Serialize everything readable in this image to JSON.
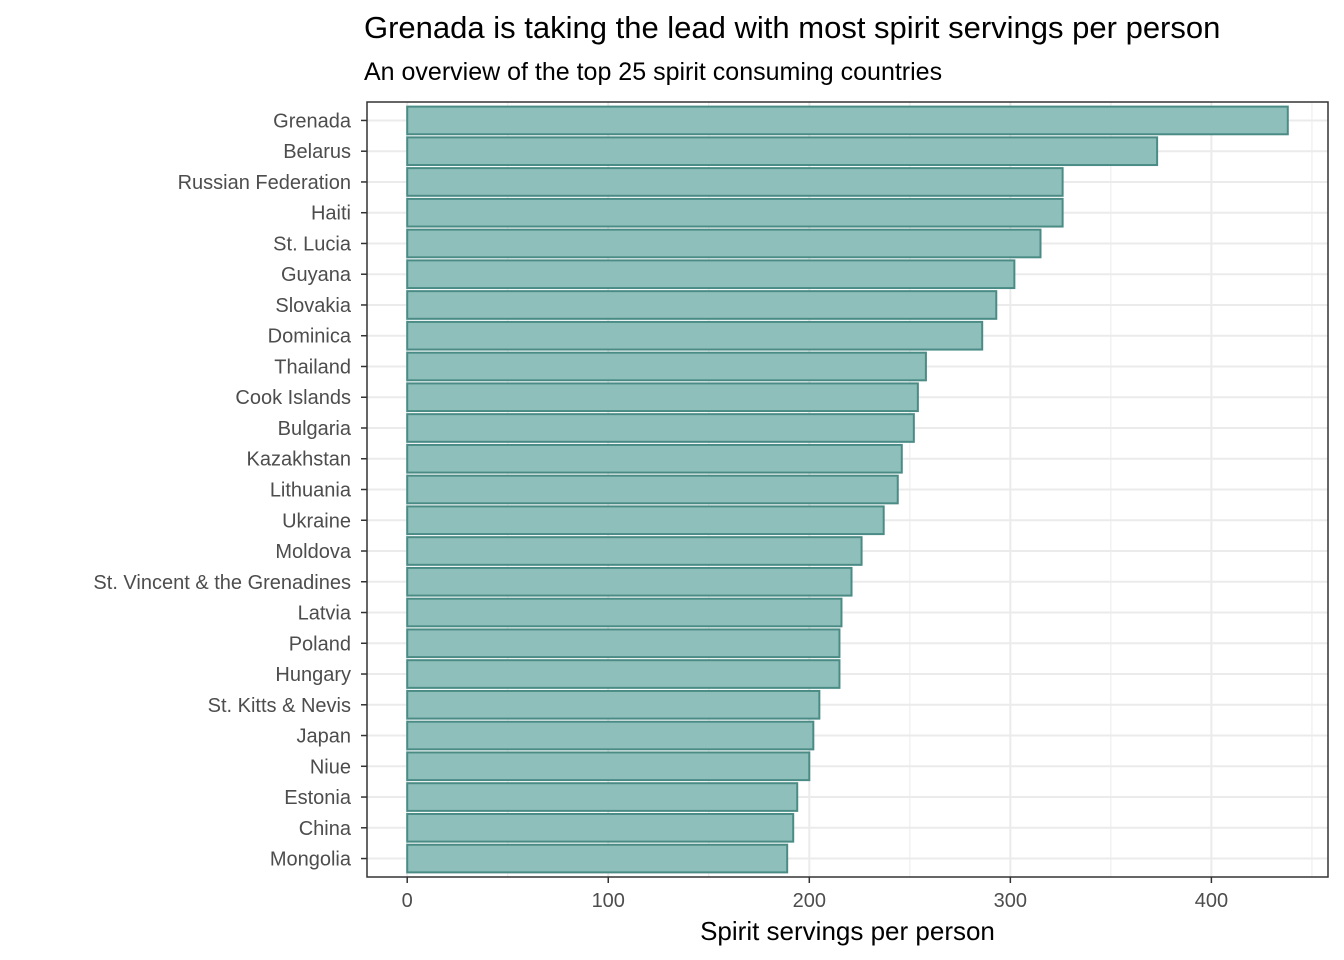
{
  "chart_data": {
    "type": "bar",
    "orientation": "horizontal",
    "title": "Grenada is taking the lead with most spirit servings per person",
    "subtitle": "An overview of the top 25 spirit consuming countries",
    "xlabel": "Spirit servings per person",
    "ylabel": "",
    "xlim": [
      -20,
      458
    ],
    "xticks": [
      0,
      100,
      200,
      300,
      400
    ],
    "grid": true,
    "categories": [
      "Grenada",
      "Belarus",
      "Russian Federation",
      "Haiti",
      "St. Lucia",
      "Guyana",
      "Slovakia",
      "Dominica",
      "Thailand",
      "Cook Islands",
      "Bulgaria",
      "Kazakhstan",
      "Lithuania",
      "Ukraine",
      "Moldova",
      "St. Vincent & the Grenadines",
      "Latvia",
      "Poland",
      "Hungary",
      "St. Kitts & Nevis",
      "Japan",
      "Niue",
      "Estonia",
      "China",
      "Mongolia"
    ],
    "values": [
      438,
      373,
      326,
      326,
      315,
      302,
      293,
      286,
      258,
      254,
      252,
      246,
      244,
      237,
      226,
      221,
      216,
      215,
      215,
      205,
      202,
      200,
      194,
      192,
      189
    ],
    "colors": {
      "bar_fill": "#8fbfba",
      "bar_stroke": "#4a8c85",
      "grid": "#ebebeb",
      "border": "#333333"
    }
  }
}
